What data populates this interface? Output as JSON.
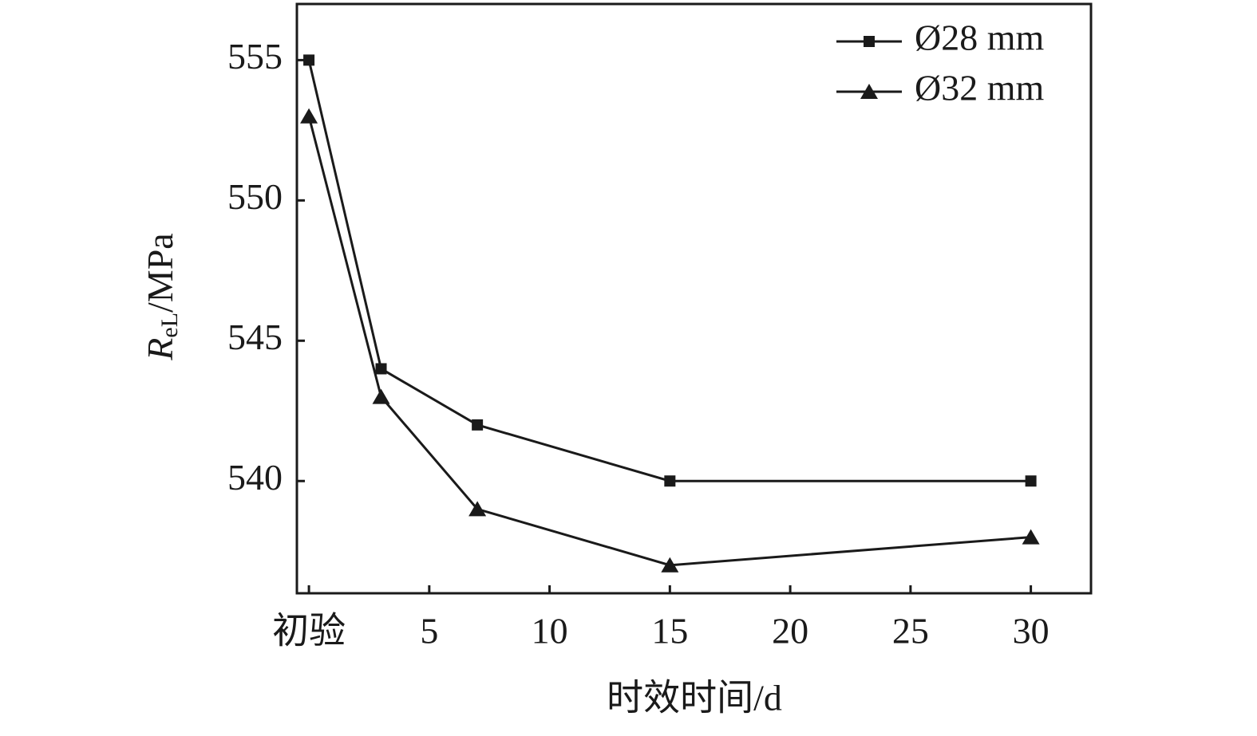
{
  "chart_data": {
    "type": "line",
    "x_label": "时效时间/d",
    "y_label_parts": [
      "R",
      "eL",
      "/MPa"
    ],
    "x": [
      0,
      3,
      7,
      15,
      30
    ],
    "series": [
      {
        "name": "Ø28 mm",
        "color": "#1a1a1a",
        "marker": "square",
        "values": [
          555,
          544,
          542,
          540,
          540
        ]
      },
      {
        "name": "Ø32 mm",
        "color": "#1a1a1a",
        "marker": "triangle",
        "values": [
          553,
          543,
          539,
          537,
          538
        ]
      }
    ],
    "xlim": [
      -0.5,
      32.5
    ],
    "ylim": [
      536,
      557
    ],
    "xticks": [
      {
        "value": 0,
        "label": "初验"
      },
      5,
      10,
      15,
      20,
      25,
      30
    ],
    "yticks": [
      540,
      545,
      550,
      555
    ],
    "legend": "upper right"
  }
}
